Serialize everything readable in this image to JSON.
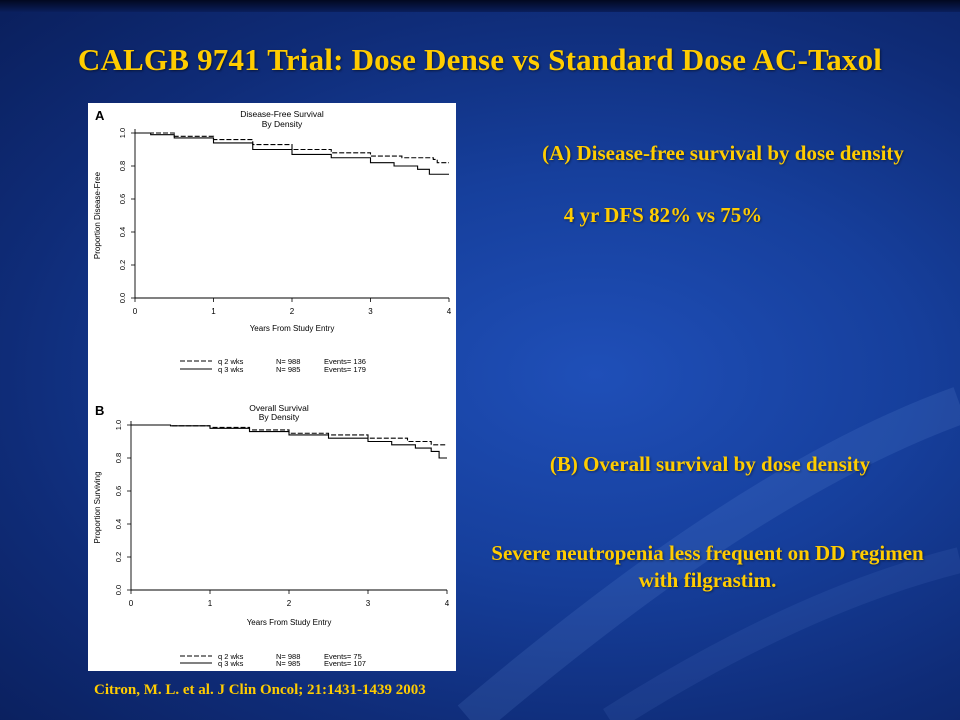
{
  "slide": {
    "title": "CALGB 9741 Trial: Dose Dense vs Standard Dose AC-Taxol",
    "panel_a_description": "(A) Disease-free survival by dose density",
    "panel_a_stat": "4 yr DFS 82% vs 75%",
    "panel_b_description": "(B) Overall survival by dose density",
    "neutropenia_note": "Severe neutropenia less frequent on DD regimen with filgrastim.",
    "citation": "Citron, M. L. et al. J Clin Oncol; 21:1431-1439 2003"
  },
  "colors": {
    "title": "#ffcc00",
    "background": "#163f9c",
    "plot_line": "#000000"
  },
  "chart_data": [
    {
      "type": "line",
      "panel_label": "A",
      "title": "Disease-Free Survival",
      "subtitle": "By Density",
      "xlabel": "Years From Study Entry",
      "ylabel": "Proportion Disease-Free",
      "xlim": [
        0,
        4
      ],
      "ylim": [
        0,
        1
      ],
      "xticks": [
        "0",
        "1",
        "2",
        "3",
        "4"
      ],
      "yticks": [
        "0.0",
        "0.2",
        "0.4",
        "0.6",
        "0.8",
        "1.0"
      ],
      "legend_position": "below",
      "series": [
        {
          "name": "q 2 wks",
          "n_label": "N= 988",
          "events_label": "Events= 136",
          "style": "dashed",
          "x": [
            0,
            0.2,
            0.5,
            1.0,
            1.5,
            2.0,
            2.5,
            3.0,
            3.4,
            3.8,
            3.85,
            4.0
          ],
          "y": [
            1.0,
            1.0,
            0.98,
            0.96,
            0.93,
            0.9,
            0.88,
            0.86,
            0.85,
            0.84,
            0.82,
            0.82
          ]
        },
        {
          "name": "q 3 wks",
          "n_label": "N= 985",
          "events_label": "Events= 179",
          "style": "solid",
          "x": [
            0,
            0.2,
            0.5,
            1.0,
            1.5,
            2.0,
            2.5,
            3.0,
            3.3,
            3.6,
            3.75,
            4.0
          ],
          "y": [
            1.0,
            0.99,
            0.97,
            0.94,
            0.9,
            0.87,
            0.85,
            0.82,
            0.8,
            0.78,
            0.75,
            0.75
          ]
        }
      ]
    },
    {
      "type": "line",
      "panel_label": "B",
      "title": "Overall Survival",
      "subtitle": "By Density",
      "xlabel": "Years From Study Entry",
      "ylabel": "Proportion Surviving",
      "xlim": [
        0,
        4
      ],
      "ylim": [
        0,
        1
      ],
      "xticks": [
        "0",
        "1",
        "2",
        "3",
        "4"
      ],
      "yticks": [
        "0.0",
        "0.2",
        "0.4",
        "0.6",
        "0.8",
        "1.0"
      ],
      "legend_position": "below",
      "series": [
        {
          "name": "q 2 wks",
          "n_label": "N= 988",
          "events_label": "Events= 75",
          "style": "dashed",
          "x": [
            0,
            0.5,
            1.0,
            1.5,
            2.0,
            2.5,
            3.0,
            3.5,
            3.8,
            4.0
          ],
          "y": [
            1.0,
            0.995,
            0.985,
            0.97,
            0.95,
            0.94,
            0.92,
            0.9,
            0.88,
            0.88
          ]
        },
        {
          "name": "q 3 wks",
          "n_label": "N= 985",
          "events_label": "Events= 107",
          "style": "solid",
          "x": [
            0,
            0.5,
            1.0,
            1.5,
            2.0,
            2.5,
            3.0,
            3.3,
            3.6,
            3.8,
            3.9,
            4.0
          ],
          "y": [
            1.0,
            0.995,
            0.98,
            0.96,
            0.94,
            0.92,
            0.9,
            0.88,
            0.86,
            0.84,
            0.8,
            0.8
          ]
        }
      ]
    }
  ]
}
